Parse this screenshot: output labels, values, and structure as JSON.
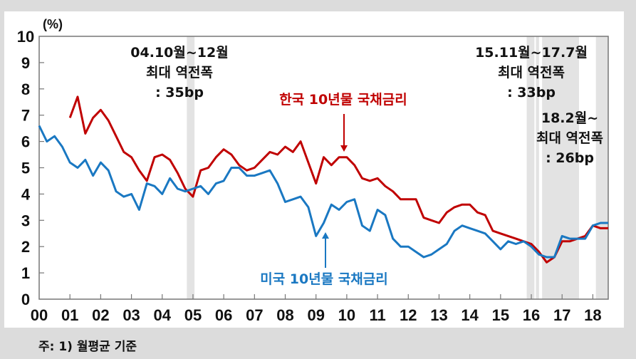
{
  "chart_data": {
    "type": "line",
    "title": "",
    "unit_label": "(%)",
    "xlabel": "",
    "ylabel": "(%)",
    "ylim": [
      0,
      10
    ],
    "xlim": [
      2000,
      2018.5
    ],
    "y_ticks": [
      "0",
      "1",
      "2",
      "3",
      "4",
      "5",
      "6",
      "7",
      "8",
      "9",
      "10"
    ],
    "x_ticks": [
      "00",
      "01",
      "02",
      "03",
      "04",
      "05",
      "06",
      "07",
      "08",
      "09",
      "10",
      "11",
      "12",
      "13",
      "14",
      "15",
      "16",
      "17",
      "18"
    ],
    "grid": false,
    "legend_position": "inline labels with arrows",
    "x": [
      2000.0,
      2000.25,
      2000.5,
      2000.75,
      2001.0,
      2001.25,
      2001.5,
      2001.75,
      2002.0,
      2002.25,
      2002.5,
      2002.75,
      2003.0,
      2003.25,
      2003.5,
      2003.75,
      2004.0,
      2004.25,
      2004.5,
      2004.75,
      2005.0,
      2005.25,
      2005.5,
      2005.75,
      2006.0,
      2006.25,
      2006.5,
      2006.75,
      2007.0,
      2007.25,
      2007.5,
      2007.75,
      2008.0,
      2008.25,
      2008.5,
      2008.75,
      2009.0,
      2009.25,
      2009.5,
      2009.75,
      2010.0,
      2010.25,
      2010.5,
      2010.75,
      2011.0,
      2011.25,
      2011.5,
      2011.75,
      2012.0,
      2012.25,
      2012.5,
      2012.75,
      2013.0,
      2013.25,
      2013.5,
      2013.75,
      2014.0,
      2014.25,
      2014.5,
      2014.75,
      2015.0,
      2015.25,
      2015.5,
      2015.75,
      2016.0,
      2016.25,
      2016.5,
      2016.75,
      2017.0,
      2017.25,
      2017.5,
      2017.75,
      2018.0,
      2018.25,
      2018.5
    ],
    "series": [
      {
        "name": "한국 10년물 국채금리",
        "color": "#c00000",
        "values": [
          null,
          null,
          null,
          null,
          6.9,
          7.7,
          6.3,
          6.9,
          7.2,
          6.8,
          6.2,
          5.6,
          5.4,
          4.9,
          4.5,
          5.4,
          5.5,
          5.3,
          4.8,
          4.2,
          3.9,
          4.9,
          5.0,
          5.4,
          5.7,
          5.5,
          5.1,
          4.9,
          5.0,
          5.3,
          5.6,
          5.5,
          5.8,
          5.6,
          6.0,
          5.2,
          4.4,
          5.4,
          5.1,
          5.4,
          5.4,
          5.1,
          4.6,
          4.5,
          4.6,
          4.3,
          4.1,
          3.8,
          3.8,
          3.8,
          3.1,
          3.0,
          2.9,
          3.3,
          3.5,
          3.6,
          3.6,
          3.3,
          3.2,
          2.6,
          2.5,
          2.4,
          2.3,
          2.2,
          2.1,
          1.8,
          1.4,
          1.6,
          2.2,
          2.2,
          2.3,
          2.4,
          2.8,
          2.7,
          2.7
        ]
      },
      {
        "name": "미국 10년물 국채금리",
        "color": "#1a78c2",
        "values": [
          6.6,
          6.0,
          6.2,
          5.8,
          5.2,
          5.0,
          5.3,
          4.7,
          5.2,
          4.9,
          4.1,
          3.9,
          4.0,
          3.4,
          4.4,
          4.3,
          4.0,
          4.6,
          4.2,
          4.1,
          4.2,
          4.3,
          4.0,
          4.4,
          4.5,
          5.0,
          5.0,
          4.7,
          4.7,
          4.8,
          4.9,
          4.4,
          3.7,
          3.8,
          3.9,
          3.5,
          2.4,
          2.9,
          3.6,
          3.4,
          3.7,
          3.8,
          2.8,
          2.6,
          3.4,
          3.2,
          2.3,
          2.0,
          2.0,
          1.8,
          1.6,
          1.7,
          1.9,
          2.1,
          2.6,
          2.8,
          2.7,
          2.6,
          2.5,
          2.2,
          1.9,
          2.2,
          2.1,
          2.2,
          2.0,
          1.7,
          1.6,
          1.6,
          2.4,
          2.3,
          2.3,
          2.3,
          2.8,
          2.9,
          2.9
        ]
      }
    ],
    "shaded_periods": [
      {
        "from": 2004.8,
        "to": 2005.05
      },
      {
        "from": 2015.85,
        "to": 2016.1
      },
      {
        "from": 2016.15,
        "to": 2016.25
      },
      {
        "from": 2016.35,
        "to": 2017.55
      },
      {
        "from": 2018.1,
        "to": 2018.5
      }
    ],
    "annotations": [
      {
        "lines": [
          "04.10월~12월",
          "최대 역전폭",
          ": 35bp"
        ]
      },
      {
        "lines": [
          "15.11월~17.7월",
          "최대 역전폭",
          ": 33bp"
        ]
      },
      {
        "lines": [
          "18.2월~",
          "최대 역전폭",
          ": 26bp"
        ]
      }
    ]
  },
  "labels": {
    "unit": "(%)",
    "korea_series": "한국 10년물 국채금리",
    "us_series": "미국 10년물 국채금리",
    "ann1": [
      "04.10월~12월",
      "최대 역전폭",
      ": 35bp"
    ],
    "ann2": [
      "15.11월~17.7월",
      "최대 역전폭",
      ": 33bp"
    ],
    "ann3": [
      "18.2월~",
      "최대 역전폭",
      ": 26bp"
    ]
  },
  "footnote": "주: 1) 월평균 기준"
}
